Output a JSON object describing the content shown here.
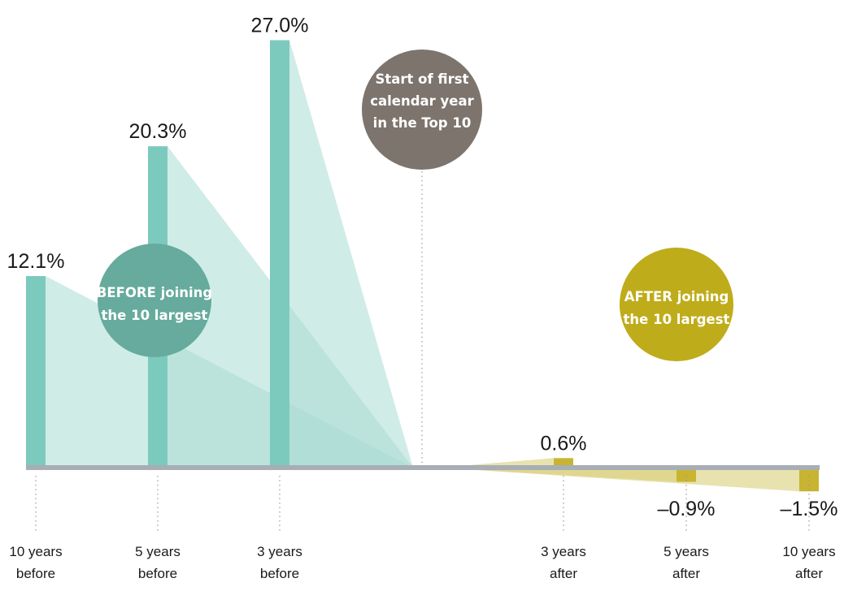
{
  "chart_data": {
    "type": "bar",
    "categories": [
      {
        "line1": "10 years",
        "line2": "before"
      },
      {
        "line1": "5 years",
        "line2": "before"
      },
      {
        "line1": "3 years",
        "line2": "before"
      },
      {
        "line1": "3 years",
        "line2": "after"
      },
      {
        "line1": "5 years",
        "line2": "after"
      },
      {
        "line1": "10 years",
        "line2": "after"
      }
    ],
    "values": [
      12.1,
      20.3,
      27.0,
      0.6,
      -0.9,
      -1.5
    ],
    "value_labels": [
      "12.1%",
      "20.3%",
      "27.0%",
      "0.6%",
      "–0.9%",
      "–1.5%"
    ],
    "ylim": [
      -2,
      28
    ],
    "grid": false,
    "colors": {
      "before": "#7ccabd",
      "before_fan": "#a9ddd3",
      "after": "#c8b431",
      "after_fan": "#d9cf7a",
      "baseline": "#a7aeb5",
      "center_circle": "#7d746d",
      "before_circle": "#66ab9d",
      "after_circle": "#bfac1a"
    },
    "annotations": {
      "center": [
        "Start of first",
        "calendar year",
        "in the Top 10"
      ],
      "before": [
        "BEFORE joining",
        "the 10 largest"
      ],
      "after": [
        "AFTER joining",
        "the 10 largest"
      ]
    }
  }
}
